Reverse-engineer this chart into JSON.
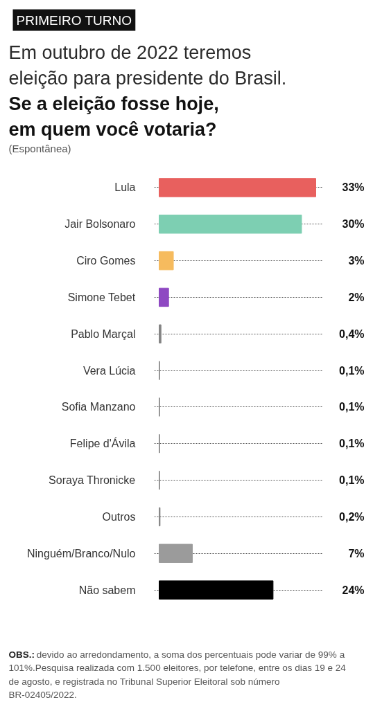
{
  "chart_data": {
    "type": "bar",
    "orientation": "horizontal",
    "title": "Em outubro de 2022 teremos eleição para presidente do Brasil.",
    "subtitle": "Se a eleição fosse hoje, em quem você votaria?",
    "annotations": [
      "PRIMEIRO TURNO",
      "(Espontânea)",
      "OBS.: devido ao arredondamento, a soma dos percentuais pode variar de 99% a 101%.Pesquisa realizada com 1.500 eleitores, por telefone, entre os dias 19 e 24 de agosto, e registrada no Tribunal Superior Eleitoral sob número BR-02405/2022."
    ],
    "categories": [
      "Lula",
      "Jair Bolsonaro",
      "Ciro Gomes",
      "Simone Tebet",
      "Pablo Marçal",
      "Vera Lúcia",
      "Sofia Manzano",
      "Felipe d'Ávila",
      "Soraya Thronicke",
      "Outros",
      "Ninguém/Branco/Nulo",
      "Não sabem"
    ],
    "values": [
      33,
      30,
      3,
      2,
      0.4,
      0.1,
      0.1,
      0.1,
      0.1,
      0.2,
      7,
      24
    ],
    "colors": [
      "#e8605e",
      "#7dcfb2",
      "#f6bb5e",
      "#8e48c2",
      "#858585",
      "#858585",
      "#858585",
      "#858585",
      "#858585",
      "#858585",
      "#9b9b9b",
      "#000000"
    ],
    "value_labels": [
      "33%",
      "30%",
      "3%",
      "2%",
      "0,4%",
      "0,1%",
      "0,1%",
      "0,1%",
      "0,1%",
      "0,2%",
      "7%",
      "24%"
    ],
    "grid": "y",
    "tick_labels": "y"
  }
}
